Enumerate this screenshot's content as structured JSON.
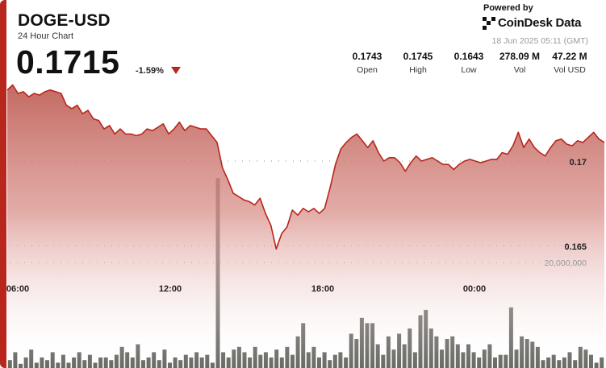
{
  "header": {
    "ticker": "DOGE-USD",
    "subtitle": "24 Hour Chart",
    "price": "0.1715",
    "change": "-1.59%",
    "powered_by": "Powered by",
    "brand": "CoinDesk Data",
    "timestamp": "18 Jun 2025 05:11 (GMT)"
  },
  "stats": [
    {
      "value": "0.1743",
      "label": "Open"
    },
    {
      "value": "0.1745",
      "label": "High"
    },
    {
      "value": "0.1643",
      "label": "Low"
    },
    {
      "value": "278.09 M",
      "label": "Vol"
    },
    {
      "value": "47.22 M",
      "label": "Vol USD"
    }
  ],
  "colors": {
    "accent": "#b8261c",
    "volume_bar": "#6b6b66",
    "area_top": "#c0625a"
  },
  "chart_data": {
    "type": "area",
    "title": "",
    "x_ticks": [
      "06:00",
      "12:00",
      "18:00",
      "00:00"
    ],
    "y_ticks": [
      {
        "value": 0.17,
        "label": "0.17"
      },
      {
        "value": 0.165,
        "label": "0.165"
      }
    ],
    "volume_tick": "20,000,000",
    "price_series": [
      0.1742,
      0.1745,
      0.174,
      0.1741,
      0.1738,
      0.174,
      0.1739,
      0.1741,
      0.1742,
      0.1741,
      0.174,
      0.1733,
      0.1731,
      0.1733,
      0.1728,
      0.173,
      0.1725,
      0.1724,
      0.1719,
      0.1721,
      0.1716,
      0.1719,
      0.1716,
      0.1716,
      0.1715,
      0.1716,
      0.1719,
      0.1718,
      0.172,
      0.1722,
      0.1716,
      0.1719,
      0.1723,
      0.1718,
      0.1721,
      0.172,
      0.1719,
      0.1719,
      0.1715,
      0.1711,
      0.1696,
      0.1689,
      0.1681,
      0.1679,
      0.1677,
      0.1676,
      0.1674,
      0.1678,
      0.1669,
      0.1662,
      0.1648,
      0.1657,
      0.1661,
      0.1671,
      0.1668,
      0.1672,
      0.167,
      0.1672,
      0.1669,
      0.1672,
      0.1684,
      0.1698,
      0.1707,
      0.1711,
      0.1714,
      0.1716,
      0.1712,
      0.1708,
      0.1712,
      0.1705,
      0.17,
      0.1702,
      0.1702,
      0.1699,
      0.1694,
      0.1699,
      0.1703,
      0.17,
      0.1701,
      0.1702,
      0.17,
      0.1698,
      0.1698,
      0.1695,
      0.1698,
      0.17,
      0.1701,
      0.17,
      0.1699,
      0.17,
      0.1701,
      0.1701,
      0.1705,
      0.1704,
      0.1709,
      0.1717,
      0.1708,
      0.1713,
      0.1708,
      0.1705,
      0.1703,
      0.1708,
      0.1712,
      0.1713,
      0.171,
      0.1709,
      0.1712,
      0.1711,
      0.1714,
      0.1717,
      0.1713,
      0.1711
    ],
    "volume_series": [
      1.5,
      3.0,
      0.8,
      2.0,
      3.5,
      1.0,
      2.0,
      1.5,
      3.0,
      1.0,
      2.5,
      1.0,
      2.0,
      3.0,
      1.5,
      2.5,
      1.0,
      2.0,
      2.0,
      1.5,
      2.5,
      4.0,
      3.0,
      2.0,
      4.5,
      1.5,
      2.0,
      3.0,
      1.5,
      3.5,
      1.0,
      2.0,
      1.5,
      2.5,
      2.0,
      3.0,
      2.0,
      2.5,
      1.0,
      36.0,
      3.0,
      2.0,
      3.5,
      4.0,
      3.0,
      2.0,
      4.0,
      2.5,
      3.0,
      2.0,
      3.5,
      2.0,
      4.0,
      2.5,
      6.0,
      8.5,
      3.0,
      4.0,
      2.0,
      3.0,
      1.5,
      2.5,
      3.0,
      2.0,
      6.5,
      5.5,
      9.5,
      8.5,
      8.5,
      4.5,
      2.5,
      6.0,
      3.5,
      6.5,
      4.5,
      7.5,
      3.0,
      10.0,
      11.0,
      7.5,
      6.0,
      3.5,
      5.5,
      6.0,
      4.5,
      3.0,
      4.5,
      3.0,
      2.0,
      3.5,
      4.5,
      2.0,
      2.5,
      2.5,
      11.5,
      3.5,
      6.0,
      5.5,
      5.0,
      4.0,
      1.5,
      2.0,
      2.5,
      1.5,
      2.0,
      3.0,
      1.5,
      4.0,
      3.5,
      2.5,
      1.0,
      2.0
    ]
  }
}
